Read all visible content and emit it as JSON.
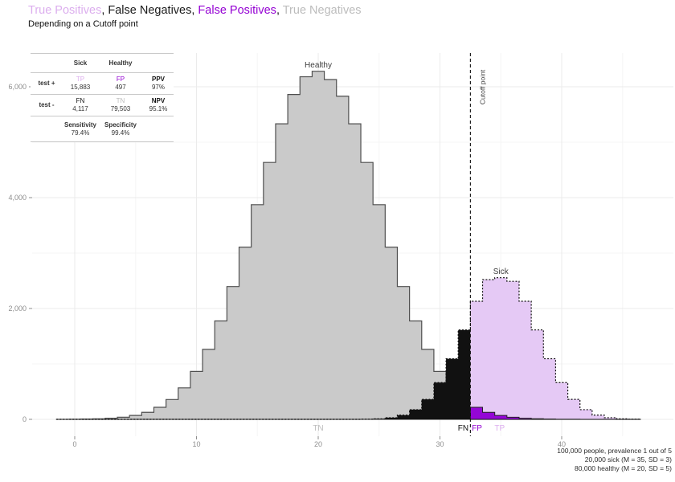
{
  "title": {
    "parts": [
      {
        "text": "True Positives",
        "color": "#dcaeee"
      },
      {
        "text": ", ",
        "color": "#1a1a1a"
      },
      {
        "text": "False Negatives",
        "color": "#1a1a1a"
      },
      {
        "text": ", ",
        "color": "#1a1a1a"
      },
      {
        "text": "False Positives",
        "color": "#9400d3"
      },
      {
        "text": ", ",
        "color": "#1a1a1a"
      },
      {
        "text": "True Negatives",
        "color": "#bcbcbc"
      }
    ]
  },
  "subtitle": "Depending on a Cutoff point",
  "colors": {
    "tp": "#dcaeee",
    "fp": "#9400d3",
    "fn": "#111111",
    "tn": "#bcbcbc",
    "metric": "#111111",
    "healthy_fill": "#cacaca",
    "healthy_stroke": "#4f4f4f",
    "sick_fill": "#e5c9f5",
    "grid_major": "#ebebeb",
    "grid_minor": "#f5f5f5",
    "axis_text": "#8e8e8e"
  },
  "table": {
    "col_headers": [
      "Sick",
      "Healthy"
    ],
    "rows": [
      {
        "label": "test +",
        "cells": [
          {
            "name": "TP",
            "value": "15,883",
            "color_key": "tp"
          },
          {
            "name": "FP",
            "value": "497",
            "color_key": "fp"
          },
          {
            "name": "PPV",
            "value": "97%",
            "color_key": "metric"
          }
        ]
      },
      {
        "label": "test -",
        "cells": [
          {
            "name": "FN",
            "value": "4,117",
            "color_key": "fn"
          },
          {
            "name": "TN",
            "value": "79,503",
            "color_key": "tn"
          },
          {
            "name": "NPV",
            "value": "95.1%",
            "color_key": "metric"
          }
        ]
      }
    ],
    "footer": [
      {
        "name": "Sensitivity",
        "value": "79.4%"
      },
      {
        "name": "Specificity",
        "value": "99.4%"
      }
    ]
  },
  "chart_data": {
    "type": "bar",
    "subtype": "overlaid-histograms",
    "bin_width": 1,
    "cutoff": 32.5,
    "bins": [
      -1,
      0,
      1,
      2,
      3,
      4,
      5,
      6,
      7,
      8,
      9,
      10,
      11,
      12,
      13,
      14,
      15,
      16,
      17,
      18,
      19,
      20,
      21,
      22,
      23,
      24,
      25,
      26,
      27,
      28,
      29,
      30,
      31,
      32,
      33,
      34,
      35,
      36,
      37,
      38,
      39,
      40,
      41,
      42,
      43,
      44,
      45,
      46
    ],
    "series": [
      {
        "name": "Healthy",
        "n": 80000,
        "mean": 20,
        "sd": 5,
        "fill": "#cacaca",
        "stroke": "#4f4f4f",
        "outline_style": "solid",
        "values": [
          1,
          2,
          5,
          10,
          20,
          38,
          71,
          127,
          217,
          358,
          568,
          864,
          1263,
          1775,
          2396,
          3107,
          3872,
          4635,
          5332,
          5860,
          6180,
          6280,
          6130,
          5830,
          5332,
          4635,
          3872,
          3107,
          2396,
          1775,
          1263,
          864,
          568,
          358,
          217,
          127,
          71,
          38,
          20,
          10,
          5,
          2,
          1,
          0,
          0,
          0,
          0,
          0
        ]
      },
      {
        "name": "Sick",
        "n": 20000,
        "mean": 35,
        "sd": 3,
        "fill": "#e5c9f5",
        "stroke": "#111111",
        "outline_style": "dotted",
        "values": [
          0,
          0,
          0,
          0,
          0,
          0,
          0,
          0,
          0,
          0,
          0,
          0,
          0,
          0,
          0,
          0,
          0,
          0,
          0,
          0,
          0,
          0,
          0,
          0,
          0,
          3,
          10,
          30,
          76,
          175,
          360,
          663,
          1093,
          1613,
          2130,
          2520,
          2555,
          2490,
          2130,
          1613,
          1093,
          663,
          360,
          175,
          76,
          30,
          10,
          3
        ]
      }
    ],
    "region_colors": {
      "TP": "#e5c9f5",
      "FP": "#9406d6",
      "FN": "#111111",
      "TN": "#cacaca"
    },
    "xlabel": "",
    "ylabel": "",
    "xlim": [
      -3.8,
      49.2
    ],
    "ylim": [
      -300,
      6600
    ],
    "x_ticks": [
      0,
      10,
      20,
      30,
      40
    ],
    "x_tick_labels": [
      "0",
      "10",
      "20",
      "30",
      "40"
    ],
    "x_minor": [
      5,
      15,
      25,
      35,
      45
    ],
    "y_ticks": [
      0,
      2000,
      4000,
      6000
    ],
    "y_tick_labels": [
      "0",
      "2,000",
      "4,000",
      "6,000"
    ],
    "y_minor": [
      1000,
      3000,
      5000
    ],
    "grid": true,
    "legend": "none",
    "annotations": [
      {
        "id": "healthy-label",
        "text": "Healthy",
        "x": 20,
        "y": 6350,
        "anchor": "middle",
        "size": 10,
        "color": "#3d3d3d"
      },
      {
        "id": "sick-label",
        "text": "Sick",
        "x": 35,
        "y": 2620,
        "anchor": "middle",
        "size": 10,
        "color": "#3d3d3d"
      },
      {
        "id": "cutoff-label",
        "text": "Cutoff point",
        "x": 33.7,
        "y": 5680,
        "anchor": "start",
        "size": 8.5,
        "color": "#3d3d3d",
        "rotate": -90
      },
      {
        "id": "tn-label",
        "text": "TN",
        "x": 20,
        "y": -200,
        "anchor": "middle",
        "size": 10,
        "color": "#bcbcbc"
      },
      {
        "id": "fn-label",
        "text": "FN",
        "x": 32.35,
        "y": -200,
        "anchor": "end",
        "size": 10,
        "color": "#111111"
      },
      {
        "id": "fp-label",
        "text": "FP",
        "x": 32.62,
        "y": -200,
        "anchor": "start",
        "size": 10,
        "color": "#9400d3"
      },
      {
        "id": "tp-label",
        "text": "TP",
        "x": 34.9,
        "y": -200,
        "anchor": "middle",
        "size": 10,
        "color": "#dcaeee"
      }
    ]
  },
  "caption": {
    "lines": [
      "100,000 people, prevalence 1 out of 5",
      "20,000 sick (M = 35, SD = 3)",
      "80,000 healthy (M = 20, SD = 5)"
    ]
  }
}
